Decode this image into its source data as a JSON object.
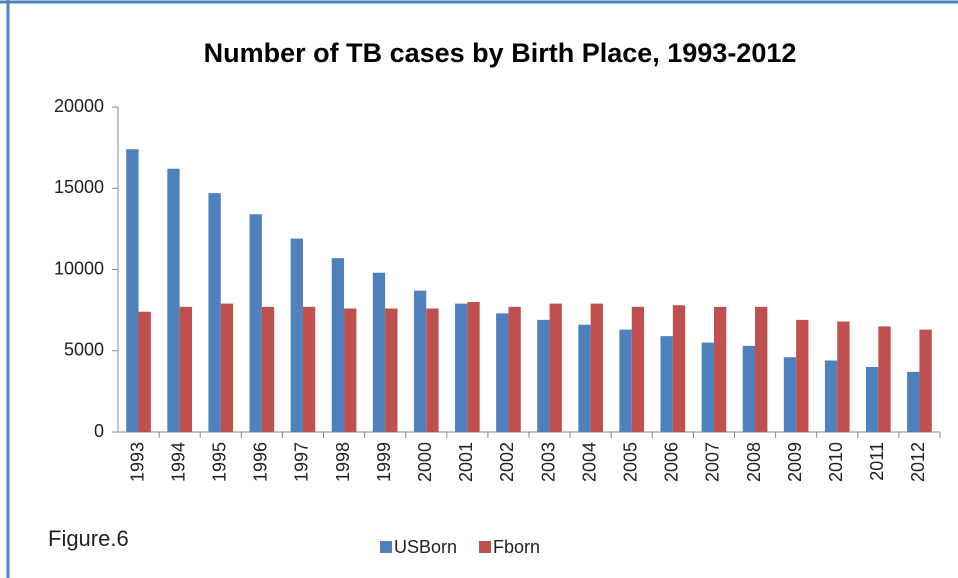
{
  "chart_data": {
    "type": "bar",
    "title": "Number of TB cases by Birth Place, 1993-2012",
    "annotation": "Figure.6",
    "categories": [
      "1993",
      "1994",
      "1995",
      "1996",
      "1997",
      "1998",
      "1999",
      "2000",
      "2001",
      "2002",
      "2003",
      "2004",
      "2005",
      "2006",
      "2007",
      "2008",
      "2009",
      "2010",
      "2011",
      "2012"
    ],
    "series": [
      {
        "name": "USBorn",
        "color": "#4f81bd",
        "values": [
          17400,
          16200,
          14700,
          13400,
          11900,
          10700,
          9800,
          8700,
          7900,
          7300,
          6900,
          6600,
          6300,
          5900,
          5500,
          5300,
          4600,
          4400,
          4000,
          3700
        ]
      },
      {
        "name": "Fborn",
        "color": "#c0504d",
        "values": [
          7400,
          7700,
          7900,
          7700,
          7700,
          7600,
          7600,
          7600,
          8000,
          7700,
          7900,
          7900,
          7700,
          7800,
          7700,
          7700,
          6900,
          6800,
          6500,
          6300
        ]
      }
    ],
    "ylim": [
      0,
      20000
    ],
    "yticks": [
      0,
      5000,
      10000,
      15000,
      20000
    ],
    "legend": "bottom"
  }
}
